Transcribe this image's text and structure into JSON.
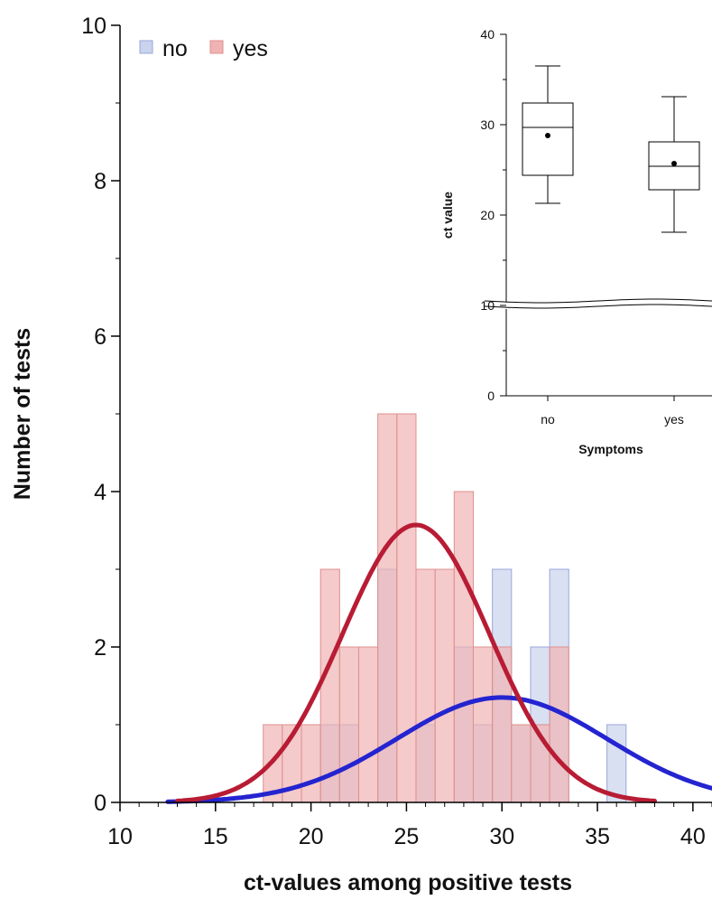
{
  "chart_data": [
    {
      "type": "bar",
      "subtype": "overlaid histogram with fitted normal curves",
      "xlabel": "ct-values among positive tests",
      "ylabel": "Number of tests",
      "xlim": [
        10,
        41
      ],
      "ylim": [
        0,
        10
      ],
      "x_ticks": [
        "10",
        "15",
        "20",
        "25",
        "30",
        "35",
        "40"
      ],
      "y_ticks": [
        "0",
        "2",
        "4",
        "6",
        "8",
        "10"
      ],
      "legend_position": "top-left",
      "bin_width": 1,
      "series": [
        {
          "name": "no",
          "fill": "#c9d3ec",
          "edge": "#9aa6dd",
          "curve_color": "#2424d0",
          "bins": [
            {
              "x": 21,
              "count": 1
            },
            {
              "x": 22,
              "count": 1
            },
            {
              "x": 24,
              "count": 3
            },
            {
              "x": 26,
              "count": 1
            },
            {
              "x": 28,
              "count": 2
            },
            {
              "x": 29,
              "count": 1
            },
            {
              "x": 30,
              "count": 3
            },
            {
              "x": 31,
              "count": 1
            },
            {
              "x": 32,
              "count": 2
            },
            {
              "x": 33,
              "count": 3
            },
            {
              "x": 36,
              "count": 1
            }
          ],
          "normal_fit": {
            "mean": 30.0,
            "sd": 5.5,
            "peak": 1.35,
            "x_range": [
              12.5,
              41
            ]
          }
        },
        {
          "name": "yes",
          "fill": "#f0b3b3",
          "edge": "#e08f8f",
          "curve_color": "#b81c34",
          "bins": [
            {
              "x": 18,
              "count": 1
            },
            {
              "x": 19,
              "count": 1
            },
            {
              "x": 20,
              "count": 1
            },
            {
              "x": 21,
              "count": 3
            },
            {
              "x": 22,
              "count": 2
            },
            {
              "x": 23,
              "count": 2
            },
            {
              "x": 24,
              "count": 5
            },
            {
              "x": 25,
              "count": 5
            },
            {
              "x": 26,
              "count": 3
            },
            {
              "x": 27,
              "count": 3
            },
            {
              "x": 28,
              "count": 4
            },
            {
              "x": 29,
              "count": 2
            },
            {
              "x": 30,
              "count": 2
            },
            {
              "x": 31,
              "count": 1
            },
            {
              "x": 32,
              "count": 1
            },
            {
              "x": 33,
              "count": 2
            }
          ],
          "normal_fit": {
            "mean": 25.5,
            "sd": 3.85,
            "peak": 3.57,
            "x_range": [
              13,
              38
            ]
          }
        }
      ]
    },
    {
      "type": "box",
      "xlabel": "Symptoms",
      "ylabel": "ct value",
      "categories": [
        "no",
        "yes"
      ],
      "y_ticks": [
        "0",
        "10",
        "20",
        "30",
        "40"
      ],
      "axis_break": true,
      "boxes": [
        {
          "category": "no",
          "min": 21.3,
          "q1": 24.4,
          "median": 29.7,
          "q3": 32.4,
          "max": 36.5,
          "mean": 28.8
        },
        {
          "category": "yes",
          "min": 18.1,
          "q1": 22.8,
          "median": 25.4,
          "q3": 28.1,
          "max": 33.1,
          "mean": 25.7
        }
      ]
    }
  ]
}
